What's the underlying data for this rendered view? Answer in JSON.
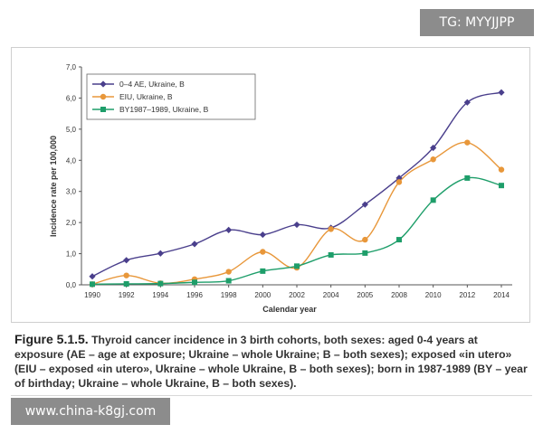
{
  "watermarks": {
    "top": "TG: MYYJJPP",
    "bottom": "www.china-k8gj.com"
  },
  "caption": {
    "label": "Figure 5.1.5.",
    "text": "Thyroid cancer incidence in 3 birth cohorts, both sexes: aged 0-4 years at exposure (AE – age at exposure; Ukraine – whole Ukraine; B – both sexes); exposed «in utero» (EIU – exposed «in utero», Ukraine – whole Ukraine, B – both sexes); born in 1987-1989 (BY – year of birthday; Ukraine – whole Ukraine, B – both sexes)."
  },
  "chart_data": {
    "type": "line",
    "xlabel": "Calendar year",
    "ylabel": "Incidence rate per 100,000",
    "ylim": [
      0,
      7
    ],
    "yticks": [
      "0,0",
      "1,0",
      "2,0",
      "3,0",
      "4,0",
      "5,0",
      "6,0",
      "7,0"
    ],
    "categories": [
      "1990",
      "1992",
      "1994",
      "1996",
      "1998",
      "2000",
      "2002",
      "2004",
      "2005",
      "2008",
      "2010",
      "2012",
      "2014"
    ],
    "grid": false,
    "legend_position": "top-left",
    "series": [
      {
        "name": "0–4 AE, Ukraine, B",
        "color": "#4a3f8c",
        "marker": "diamond",
        "values": [
          0.27,
          0.79,
          1.01,
          1.31,
          1.76,
          1.61,
          1.93,
          1.83,
          2.58,
          3.43,
          4.4,
          5.86,
          6.18
        ]
      },
      {
        "name": "EIU, Ukraine, B",
        "color": "#e8973a",
        "marker": "circle",
        "values": [
          0.02,
          0.3,
          0.05,
          0.18,
          0.42,
          1.06,
          0.55,
          1.79,
          1.45,
          3.3,
          4.03,
          4.57,
          3.7
        ]
      },
      {
        "name": "BY1987–1989, Ukraine, B",
        "color": "#1e9e6a",
        "marker": "square",
        "values": [
          0.02,
          0.03,
          0.04,
          0.08,
          0.13,
          0.44,
          0.6,
          0.96,
          1.02,
          1.45,
          2.72,
          3.43,
          3.19
        ]
      }
    ]
  }
}
